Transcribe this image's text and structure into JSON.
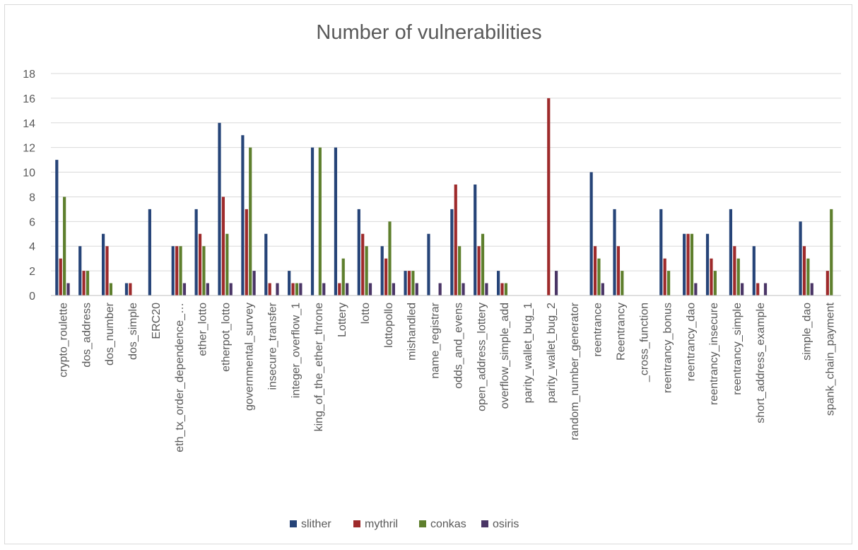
{
  "chart_data": {
    "type": "bar",
    "title": "Number of vulnerabilities",
    "xlabel": "",
    "ylabel": "",
    "ylim": [
      0,
      18
    ],
    "yticks": [
      0,
      2,
      4,
      6,
      8,
      10,
      12,
      14,
      16,
      18
    ],
    "grid": true,
    "legend_position": "bottom",
    "categories": [
      "crypto_roulette",
      "dos_address",
      "dos_number",
      "dos_simple",
      "ERC20",
      "eth_tx_order_dependence_…",
      "ether_lotto",
      "etherpot_lotto",
      "governmental_survey",
      "insecure_transfer",
      "integer_overflow_1",
      "king_of_the_ether_throne",
      "Lottery",
      "lotto",
      "lottopollo",
      "mishandled",
      "name_registrar",
      "odds_and_evens",
      "open_address_lottery",
      "overflow_simple_add",
      "parity_wallet_bug_1",
      "parity_wallet_bug_2",
      "random_number_generator",
      "reentrance",
      "Reentrancy",
      "_cross_function",
      "reentrancy_bonus",
      "reentrancy_dao",
      "reentrancy_insecure",
      "reentrancy_simple",
      "short_address_example",
      "",
      "simple_dao",
      "spank_chain_payment"
    ],
    "series": [
      {
        "name": "slither",
        "color": "#264478",
        "values": [
          11,
          4,
          5,
          1,
          7,
          4,
          7,
          14,
          13,
          5,
          2,
          12,
          12,
          7,
          4,
          2,
          5,
          7,
          9,
          2,
          0,
          0,
          0,
          10,
          7,
          0,
          7,
          5,
          5,
          7,
          4,
          0,
          6,
          0
        ]
      },
      {
        "name": "mythril",
        "color": "#9e2a2b",
        "values": [
          3,
          2,
          4,
          1,
          0,
          4,
          5,
          8,
          7,
          1,
          1,
          0,
          1,
          5,
          3,
          2,
          0,
          9,
          4,
          1,
          0,
          16,
          0,
          4,
          4,
          0,
          3,
          5,
          3,
          4,
          1,
          0,
          4,
          2
        ]
      },
      {
        "name": "conkas",
        "color": "#5e7f2d",
        "values": [
          8,
          2,
          1,
          0,
          0,
          4,
          4,
          5,
          12,
          0,
          1,
          12,
          3,
          4,
          6,
          2,
          0,
          4,
          5,
          1,
          0,
          0,
          0,
          3,
          2,
          0,
          2,
          5,
          2,
          3,
          0,
          0,
          3,
          7
        ]
      },
      {
        "name": "osiris",
        "color": "#4a3566",
        "values": [
          1,
          0,
          0,
          0,
          0,
          1,
          1,
          1,
          2,
          1,
          1,
          1,
          1,
          1,
          1,
          1,
          1,
          1,
          1,
          0,
          0,
          2,
          0,
          1,
          0,
          0,
          0,
          1,
          0,
          1,
          1,
          0,
          1,
          0
        ]
      }
    ]
  }
}
